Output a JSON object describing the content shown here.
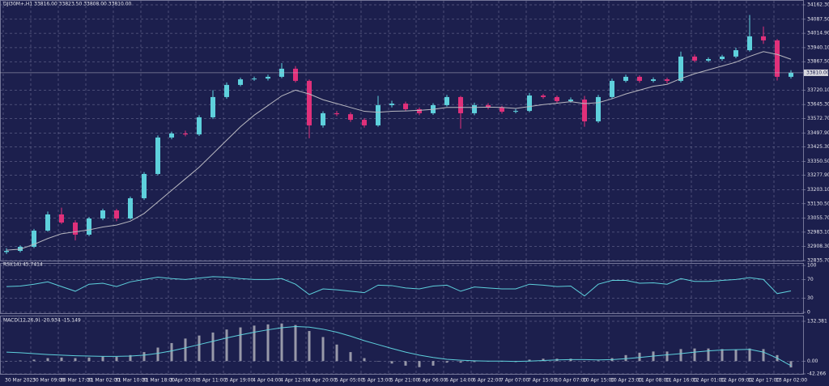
{
  "chart_data": [
    {
      "type": "candlestick",
      "title": "DJI30M+,H1  33816.00 33823.50 33808.00 33810.00",
      "categories": [
        "30 Mar 2023",
        null,
        "30 Mar 09:00",
        null,
        "30 Mar 17:00",
        null,
        "31 Mar 02:00",
        null,
        "31 Mar 10:00",
        null,
        "31 Mar 18:00",
        null,
        "3 Apr 03:00",
        null,
        "3 Apr 11:00",
        null,
        "3 Apr 19:00",
        null,
        "4 Apr 04:00",
        null,
        "4 Apr 12:00",
        null,
        "4 Apr 20:00",
        null,
        "5 Apr 05:00",
        null,
        "5 Apr 13:00",
        null,
        "5 Apr 21:00",
        null,
        "6 Apr 06:00",
        null,
        "6 Apr 14:00",
        null,
        "6 Apr 22:00",
        null,
        "7 Apr 07:00",
        null,
        "7 Apr 15:00",
        null,
        "10 Apr 07:00",
        null,
        "10 Apr 15:00",
        null,
        "10 Apr 23:00",
        null,
        "11 Apr 08:00",
        null,
        "11 Apr 16:00",
        null,
        "12 Apr 01:00",
        null,
        "12 Apr 09:00",
        null,
        "12 Apr 17:00",
        null,
        "13 Apr 02:00",
        null
      ],
      "open": [
        32880,
        32886,
        32907,
        32991,
        33075,
        33033,
        32970,
        33054,
        33096,
        33054,
        33159,
        33285,
        33474,
        33495,
        33490,
        33579,
        33684,
        33747,
        33776,
        33780,
        33789,
        33831,
        33768,
        33537,
        33600,
        33595,
        33566,
        33537,
        33642,
        33650,
        33621,
        33600,
        33642,
        33684,
        33600,
        33642,
        33629,
        33608,
        33612,
        33692,
        33684,
        33663,
        33671,
        33558,
        33684,
        33768,
        33789,
        33768,
        33776,
        33768,
        33894,
        33873,
        33881,
        33894,
        33927,
        33999,
        33978,
        33789
      ],
      "high": [
        32900,
        32915,
        33000,
        33090,
        33110,
        33045,
        33062,
        33105,
        33104,
        33168,
        33295,
        33485,
        33505,
        33510,
        33590,
        33720,
        33760,
        33785,
        33790,
        33800,
        33860,
        33845,
        33775,
        33610,
        33612,
        33605,
        33575,
        33690,
        33665,
        33660,
        33630,
        33652,
        33695,
        33690,
        33655,
        33652,
        33638,
        33622,
        33705,
        33700,
        33692,
        33682,
        33690,
        33695,
        33780,
        33800,
        33797,
        33786,
        33785,
        33920,
        33905,
        33890,
        33903,
        33940,
        34110,
        34050,
        33985,
        33823.5
      ],
      "low": [
        32870,
        32878,
        32900,
        32985,
        33025,
        32940,
        32962,
        33045,
        33040,
        33048,
        33150,
        33278,
        33465,
        33480,
        33482,
        33570,
        33675,
        33740,
        33768,
        33770,
        33782,
        33760,
        33470,
        33525,
        33585,
        33555,
        33525,
        33530,
        33630,
        33610,
        33590,
        33592,
        33635,
        33520,
        33590,
        33620,
        33598,
        33600,
        33605,
        33675,
        33655,
        33655,
        33530,
        33550,
        33675,
        33760,
        33758,
        33760,
        33755,
        33760,
        33865,
        33865,
        33872,
        33885,
        33920,
        33960,
        33770,
        33780
      ],
      "close": [
        32886,
        32907,
        32991,
        33075,
        33033,
        32970,
        33054,
        33096,
        33054,
        33159,
        33285,
        33474,
        33495,
        33490,
        33579,
        33684,
        33747,
        33776,
        33780,
        33789,
        33831,
        33768,
        33537,
        33600,
        33595,
        33566,
        33537,
        33642,
        33650,
        33621,
        33600,
        33642,
        33684,
        33600,
        33642,
        33629,
        33608,
        33612,
        33692,
        33684,
        33663,
        33671,
        33558,
        33684,
        33768,
        33789,
        33768,
        33776,
        33768,
        33894,
        33873,
        33881,
        33894,
        33927,
        33999,
        33978,
        33789,
        33810
      ],
      "moving_average": [
        32890,
        32895,
        32920,
        32950,
        32975,
        32985,
        32995,
        33010,
        33020,
        33040,
        33080,
        33140,
        33200,
        33260,
        33320,
        33390,
        33460,
        33530,
        33590,
        33640,
        33690,
        33720,
        33700,
        33670,
        33650,
        33630,
        33610,
        33605,
        33610,
        33612,
        33615,
        33620,
        33630,
        33630,
        33630,
        33632,
        33630,
        33625,
        33635,
        33645,
        33652,
        33660,
        33650,
        33655,
        33675,
        33700,
        33720,
        33740,
        33750,
        33780,
        33805,
        33825,
        33845,
        33865,
        33895,
        33920,
        33905,
        33880
      ],
      "up_color": "#5ed0dc",
      "down_color": "#e0307a",
      "ma_color": "#b8b8c0",
      "last_price": {
        "value": 33810,
        "label": "33810.00"
      },
      "ylim": [
        32835.7,
        34162.3
      ],
      "yticks": [
        {
          "value": 34162.3,
          "label": "34162.30"
        },
        {
          "value": 34087.5,
          "label": "34087.50"
        },
        {
          "value": 34014.9,
          "label": "34014.90"
        },
        {
          "value": 33940.1,
          "label": "33940.10"
        },
        {
          "value": 33867.5,
          "label": "33867.50"
        },
        {
          "value": 33720.1,
          "label": "33720.10"
        },
        {
          "value": 33645.3,
          "label": "33645.30"
        },
        {
          "value": 33572.7,
          "label": "33572.70"
        },
        {
          "value": 33497.9,
          "label": "33497.90"
        },
        {
          "value": 33425.3,
          "label": "33425.30"
        },
        {
          "value": 33350.5,
          "label": "33350.50"
        },
        {
          "value": 33277.9,
          "label": "33277.90"
        },
        {
          "value": 33203.1,
          "label": "33203.10"
        },
        {
          "value": 33130.5,
          "label": "33130.50"
        },
        {
          "value": 33055.7,
          "label": "33055.70"
        },
        {
          "value": 32983.1,
          "label": "32983.10"
        },
        {
          "value": 32908.3,
          "label": "32908.30"
        },
        {
          "value": 32835.7,
          "label": "32835.70"
        }
      ],
      "grid": true
    },
    {
      "type": "line",
      "title": "RSI(14) 45.7414",
      "values": [
        55,
        56,
        60,
        65,
        55,
        45,
        60,
        62,
        55,
        65,
        70,
        75,
        72,
        70,
        73,
        76,
        75,
        72,
        70,
        70,
        72,
        60,
        38,
        50,
        48,
        45,
        42,
        58,
        57,
        52,
        50,
        56,
        58,
        45,
        54,
        52,
        50,
        50,
        60,
        58,
        55,
        56,
        35,
        60,
        68,
        68,
        62,
        63,
        60,
        72,
        66,
        66,
        68,
        70,
        74,
        70,
        40,
        45.7414
      ],
      "color": "#5ed0dc",
      "ylim": [
        0,
        100
      ],
      "yticks": [
        100,
        70,
        30,
        0
      ],
      "grid": true
    },
    {
      "type": "macd",
      "title": "MACD(12,26,9) -20.934 -15.149",
      "values": [
        0,
        2,
        5,
        10,
        12,
        10,
        12,
        15,
        14,
        20,
        30,
        45,
        60,
        75,
        85,
        95,
        105,
        112,
        118,
        122,
        125,
        120,
        100,
        80,
        55,
        30,
        10,
        0,
        -8,
        -15,
        -20,
        -15,
        -5,
        -5,
        -3,
        0,
        -2,
        -3,
        5,
        8,
        8,
        8,
        0,
        2,
        10,
        20,
        28,
        32,
        32,
        40,
        42,
        42,
        40,
        38,
        42,
        40,
        20,
        -20.934
      ],
      "signal": [
        30,
        28,
        25,
        22,
        20,
        18,
        17,
        16,
        16,
        17,
        20,
        26,
        34,
        44,
        55,
        66,
        77,
        87,
        96,
        104,
        111,
        115,
        113,
        106,
        96,
        83,
        68,
        55,
        42,
        30,
        20,
        12,
        6,
        3,
        1,
        0,
        0,
        -1,
        0,
        2,
        4,
        5,
        5,
        4,
        5,
        8,
        12,
        17,
        21,
        25,
        30,
        34,
        37,
        38,
        39,
        30,
        10,
        -15.149
      ],
      "color": "#b8b8c0",
      "signal_color": "#5ed0dc",
      "ylim": [
        -42.266,
        132.381
      ],
      "yticks": [
        {
          "value": 132.381,
          "label": "132.381"
        },
        {
          "value": 0,
          "label": "0.00"
        },
        {
          "value": -42.266,
          "label": "-42.266"
        }
      ],
      "grid": true
    }
  ]
}
